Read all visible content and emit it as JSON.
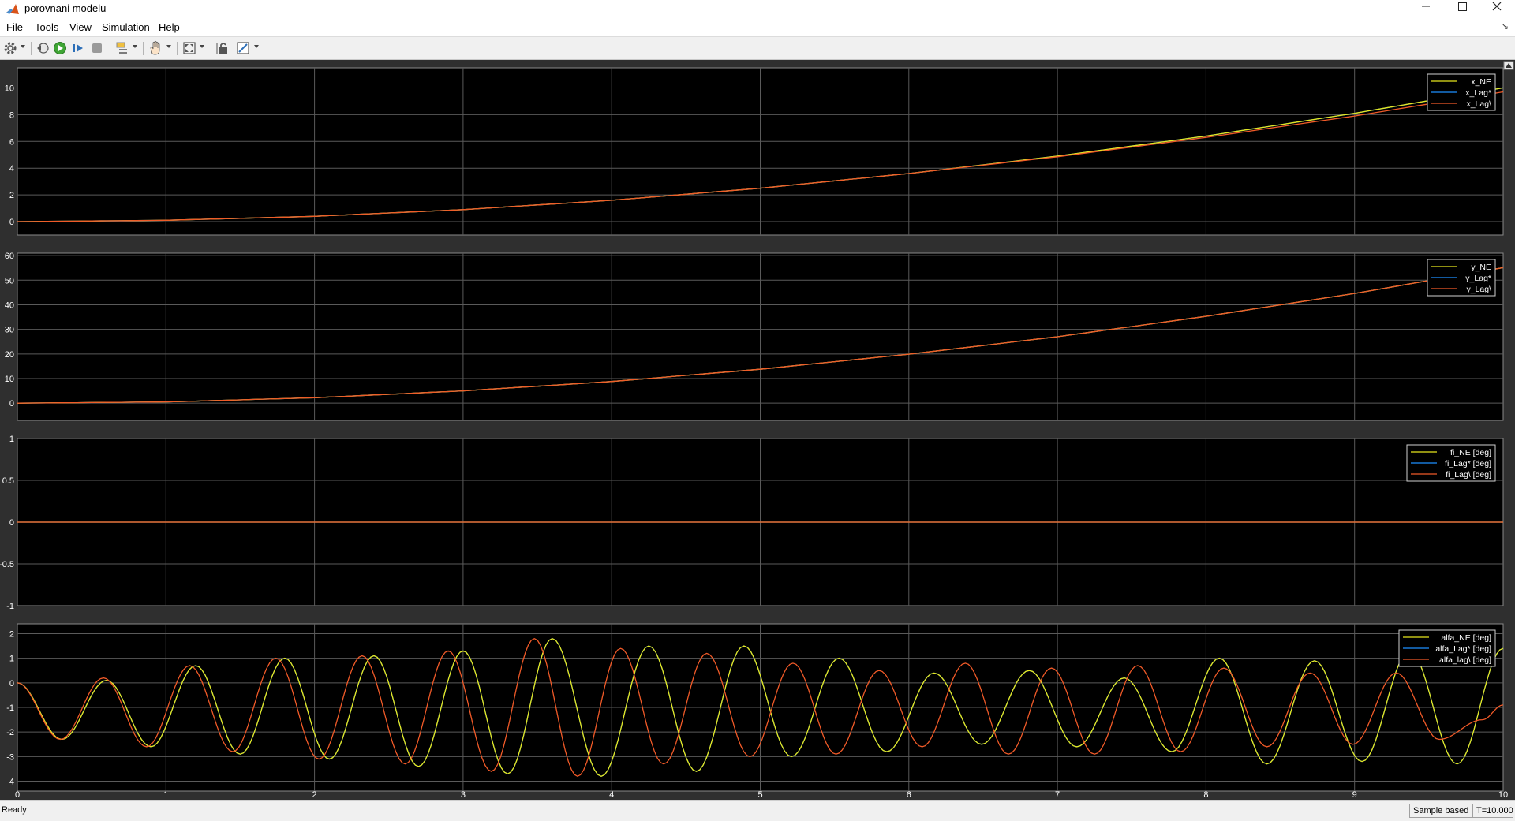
{
  "window": {
    "title": "porovnani modelu"
  },
  "menu": {
    "file": "File",
    "tools": "Tools",
    "view": "View",
    "simulation": "Simulation",
    "help": "Help"
  },
  "toolbar": {
    "icons": [
      "settings-icon",
      "step-back-icon",
      "run-icon",
      "step-forward-icon",
      "stop-icon",
      "highlight-icon",
      "pan-icon",
      "zoom-fit-icon",
      "lock-axes-icon",
      "style-icon"
    ]
  },
  "status": {
    "ready": "Ready",
    "mode": "Sample based",
    "time": "T=10.000"
  },
  "colors": {
    "background": "#000000",
    "figure": "#2f2f2f",
    "grid": "#5a5a5a",
    "axis_text": "#ffffff",
    "series_ne": "#e6e61c",
    "series_lag1": "#1e90ff",
    "series_lag2": "#f05a28"
  },
  "chart_data": [
    {
      "type": "line",
      "xlim": [
        0,
        10
      ],
      "ylim": [
        -1,
        11.5
      ],
      "xticks": [
        "0",
        "1",
        "2",
        "3",
        "4",
        "5",
        "6",
        "7",
        "8",
        "9",
        "10"
      ],
      "yticks": [
        "0",
        "2",
        "4",
        "6",
        "8",
        "10"
      ],
      "legend_position": "top-right",
      "grid": true,
      "series": [
        {
          "name": "x_NE",
          "x": [
            0,
            1,
            2,
            3,
            4,
            5,
            6,
            7,
            8,
            9,
            10
          ],
          "y": [
            0,
            0.1,
            0.4,
            0.9,
            1.6,
            2.5,
            3.6,
            4.9,
            6.4,
            8.1,
            10.0
          ]
        },
        {
          "name": "x_Lag*",
          "x": [
            0,
            1,
            2,
            3,
            4,
            5,
            6,
            7,
            8,
            9,
            10
          ],
          "y": [
            0,
            0.1,
            0.4,
            0.9,
            1.6,
            2.5,
            3.6,
            4.9,
            6.4,
            8.1,
            10.0
          ]
        },
        {
          "name": "x_Lag\\",
          "x": [
            0,
            1,
            2,
            3,
            4,
            5,
            6,
            7,
            8,
            9,
            10
          ],
          "y": [
            0,
            0.1,
            0.4,
            0.9,
            1.6,
            2.5,
            3.6,
            4.85,
            6.3,
            7.9,
            9.7
          ]
        }
      ]
    },
    {
      "type": "line",
      "xlim": [
        0,
        10
      ],
      "ylim": [
        -7,
        61
      ],
      "xticks": [
        "0",
        "1",
        "2",
        "3",
        "4",
        "5",
        "6",
        "7",
        "8",
        "9",
        "10"
      ],
      "yticks": [
        "0",
        "10",
        "20",
        "30",
        "40",
        "50",
        "60"
      ],
      "legend_position": "top-right",
      "grid": true,
      "series": [
        {
          "name": "y_NE",
          "x": [
            0,
            1,
            2,
            3,
            4,
            5,
            6,
            7,
            8,
            9,
            10
          ],
          "y": [
            0,
            0.5,
            2.2,
            5,
            8.8,
            13.8,
            19.9,
            27,
            35.3,
            44.6,
            55.1
          ]
        },
        {
          "name": "y_Lag*",
          "x": [
            0,
            1,
            2,
            3,
            4,
            5,
            6,
            7,
            8,
            9,
            10
          ],
          "y": [
            0,
            0.5,
            2.2,
            5,
            8.8,
            13.8,
            19.9,
            27,
            35.3,
            44.6,
            55.1
          ]
        },
        {
          "name": "y_Lag\\",
          "x": [
            0,
            1,
            2,
            3,
            4,
            5,
            6,
            7,
            8,
            9,
            10
          ],
          "y": [
            0,
            0.5,
            2.2,
            5,
            8.8,
            13.8,
            19.9,
            27,
            35.3,
            44.6,
            55.1
          ]
        }
      ]
    },
    {
      "type": "line",
      "xlim": [
        0,
        10
      ],
      "ylim": [
        -1,
        1
      ],
      "xticks": [
        "0",
        "1",
        "2",
        "3",
        "4",
        "5",
        "6",
        "7",
        "8",
        "9",
        "10"
      ],
      "yticks": [
        "-1",
        "-0.5",
        "0",
        "0.5",
        "1"
      ],
      "legend_position": "top-right",
      "grid": true,
      "series": [
        {
          "name": "fi_NE [deg]",
          "x": [
            0,
            10
          ],
          "y": [
            0,
            0
          ]
        },
        {
          "name": "fi_Lag* [deg]",
          "x": [
            0,
            10
          ],
          "y": [
            0,
            0
          ]
        },
        {
          "name": "fi_Lag\\ [deg]",
          "x": [
            0,
            10
          ],
          "y": [
            0,
            0
          ]
        }
      ]
    },
    {
      "type": "line",
      "xlim": [
        0,
        10
      ],
      "ylim": [
        -4.4,
        2.4
      ],
      "xticks": [
        "0",
        "1",
        "2",
        "3",
        "4",
        "5",
        "6",
        "7",
        "8",
        "9",
        "10"
      ],
      "yticks": [
        "-4",
        "-3",
        "-2",
        "-1",
        "0",
        "1",
        "2"
      ],
      "legend_position": "top-right",
      "grid": true,
      "series": [
        {
          "name": "alfa_NE [deg]",
          "x": [
            0,
            0.3,
            0.6,
            0.9,
            1.2,
            1.5,
            1.8,
            2.1,
            2.4,
            2.7,
            3.0,
            3.3,
            3.6,
            3.93,
            4.25,
            4.57,
            4.89,
            5.21,
            5.53,
            5.85,
            6.17,
            6.49,
            6.81,
            7.13,
            7.45,
            7.77,
            8.09,
            8.41,
            8.73,
            9.05,
            9.37,
            9.69,
            10.0
          ],
          "y": [
            0,
            -2.3,
            0.1,
            -2.6,
            0.7,
            -2.9,
            1.0,
            -3.1,
            1.1,
            -3.4,
            1.3,
            -3.7,
            1.8,
            -3.8,
            1.5,
            -3.6,
            1.5,
            -3.0,
            1.0,
            -2.8,
            0.4,
            -2.5,
            0.5,
            -2.6,
            0.2,
            -2.8,
            1.0,
            -3.3,
            0.9,
            -3.2,
            1.3,
            -3.3,
            1.4
          ]
        },
        {
          "name": "alfa_Lag* [deg]",
          "x": [
            0,
            0.3,
            0.6,
            0.9,
            1.2,
            1.5,
            1.8,
            2.1,
            2.4,
            2.7,
            3.0,
            3.3,
            3.6,
            3.93,
            4.25,
            4.57,
            4.89,
            5.21,
            5.53,
            5.85,
            6.17,
            6.49,
            6.81,
            7.13,
            7.45,
            7.77,
            8.09,
            8.41,
            8.73,
            9.05,
            9.37,
            9.69,
            10.0
          ],
          "y": [
            0,
            -2.3,
            0.1,
            -2.6,
            0.7,
            -2.9,
            1.0,
            -3.1,
            1.1,
            -3.4,
            1.3,
            -3.7,
            1.8,
            -3.8,
            1.5,
            -3.6,
            1.5,
            -3.0,
            1.0,
            -2.8,
            0.4,
            -2.5,
            0.5,
            -2.6,
            0.2,
            -2.8,
            1.0,
            -3.3,
            0.9,
            -3.2,
            1.3,
            -3.3,
            1.4
          ]
        },
        {
          "name": "alfa_lag\\ [deg]",
          "x": [
            0,
            0.29,
            0.58,
            0.87,
            1.16,
            1.45,
            1.74,
            2.03,
            2.32,
            2.61,
            2.9,
            3.19,
            3.48,
            3.77,
            4.06,
            4.35,
            4.64,
            4.93,
            5.22,
            5.51,
            5.8,
            6.09,
            6.38,
            6.67,
            6.96,
            7.25,
            7.54,
            7.83,
            8.12,
            8.41,
            8.7,
            8.99,
            9.28,
            9.57,
            9.86,
            10.0
          ],
          "y": [
            0,
            -2.3,
            0.2,
            -2.6,
            0.7,
            -2.8,
            1.0,
            -3.1,
            1.1,
            -3.3,
            1.3,
            -3.6,
            1.8,
            -3.8,
            1.4,
            -3.3,
            1.2,
            -3.0,
            0.8,
            -2.9,
            0.5,
            -2.6,
            0.8,
            -2.9,
            0.6,
            -2.9,
            0.7,
            -2.8,
            0.6,
            -2.6,
            0.4,
            -2.5,
            0.4,
            -2.3,
            -1.5,
            -0.9
          ]
        }
      ]
    }
  ]
}
